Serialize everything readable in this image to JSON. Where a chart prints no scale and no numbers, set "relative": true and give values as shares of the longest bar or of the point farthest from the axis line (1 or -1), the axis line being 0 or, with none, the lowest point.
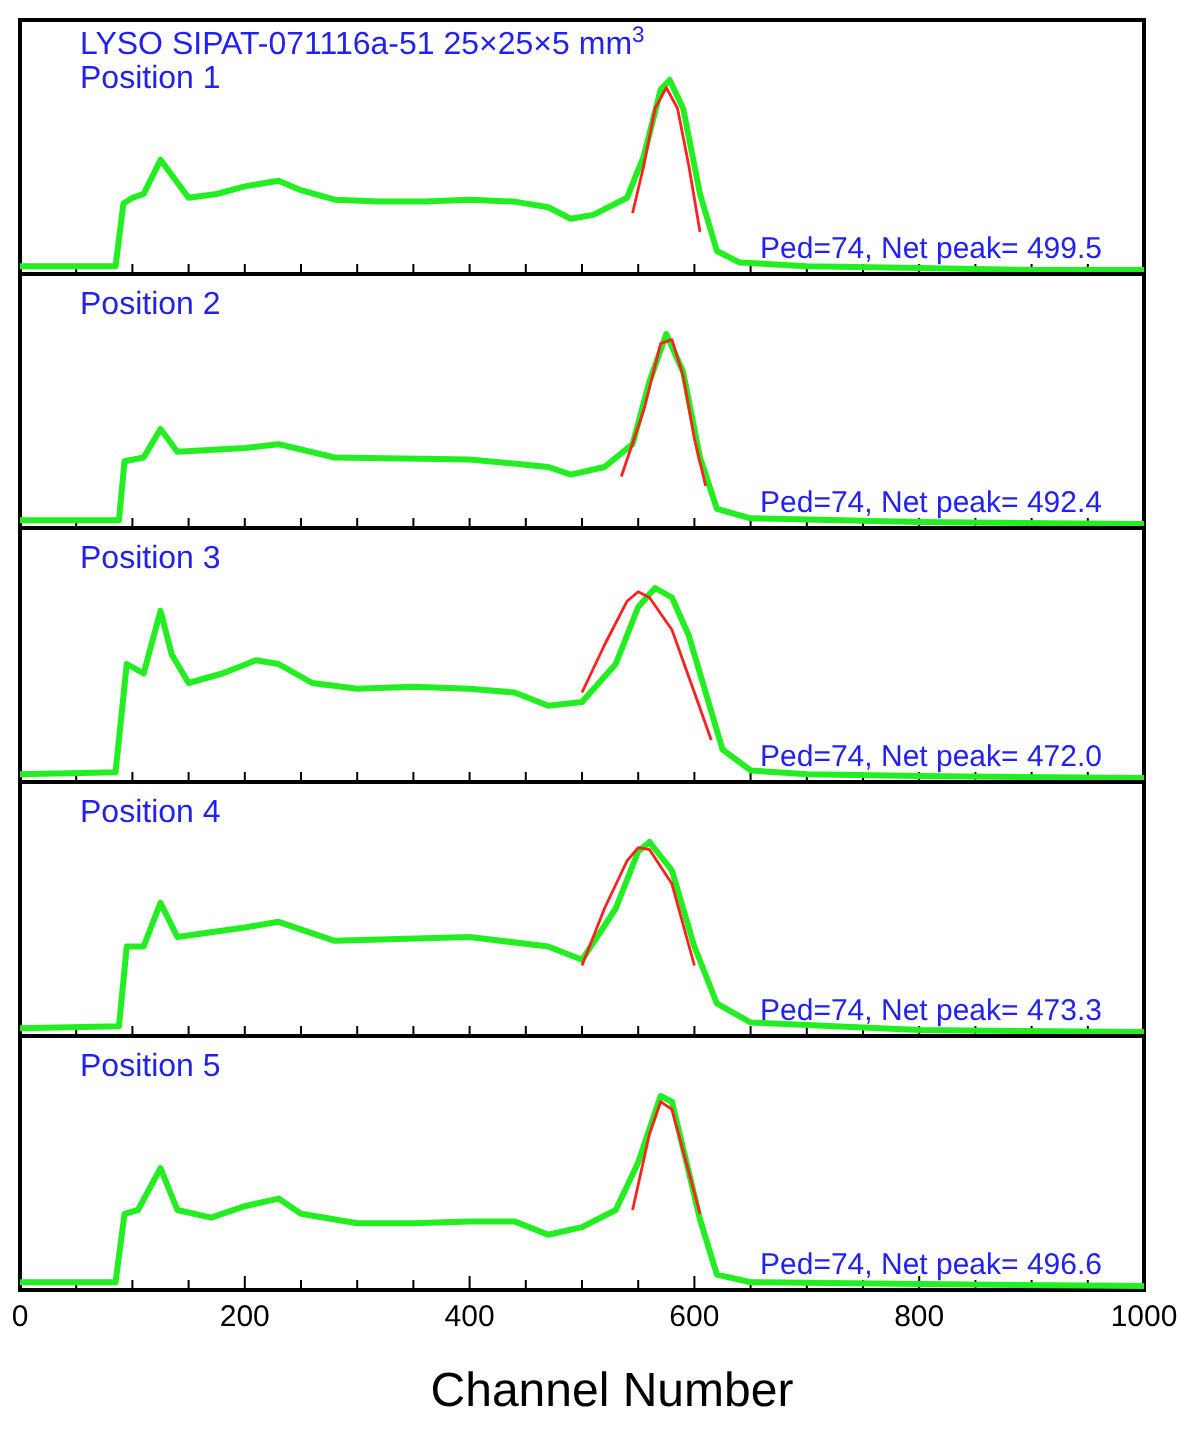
{
  "chart_data": [
    {
      "type": "line",
      "relative": true,
      "title": "LYSO SIPAT-071116a-51  25×25×5 mm$^{3}$",
      "annotations": [
        "Position 1",
        "Ped=74, Net peak= 499.5"
      ],
      "xlim": [
        0,
        1000
      ],
      "xticks": [
        {
          "value": 0,
          "label": null
        },
        {
          "value": 50,
          "label": null
        },
        {
          "value": 100,
          "label": null
        },
        {
          "value": 150,
          "label": null
        },
        {
          "value": 200,
          "label": null
        },
        {
          "value": 250,
          "label": null
        },
        {
          "value": 300,
          "label": null
        },
        {
          "value": 350,
          "label": null
        },
        {
          "value": 400,
          "label": null
        },
        {
          "value": 450,
          "label": null
        },
        {
          "value": 500,
          "label": null
        },
        {
          "value": 550,
          "label": null
        },
        {
          "value": 600,
          "label": null
        },
        {
          "value": 650,
          "label": null
        },
        {
          "value": 700,
          "label": null
        },
        {
          "value": 750,
          "label": null
        },
        {
          "value": 800,
          "label": null
        },
        {
          "value": 850,
          "label": null
        },
        {
          "value": 900,
          "label": null
        },
        {
          "value": 950,
          "label": null
        },
        {
          "value": 1000,
          "label": null
        }
      ],
      "tick_labels": false,
      "series": [
        {
          "color": "#22ee22",
          "x": [
            0,
            85,
            92,
            100,
            110,
            125,
            135,
            150,
            175,
            200,
            230,
            250,
            280,
            320,
            360,
            400,
            440,
            470,
            490,
            510,
            540,
            555,
            570,
            578,
            590,
            605,
            620,
            640,
            700,
            800,
            900,
            1000
          ],
          "values": [
            0.02,
            0.02,
            0.35,
            0.38,
            0.4,
            0.58,
            0.5,
            0.38,
            0.4,
            0.44,
            0.47,
            0.42,
            0.37,
            0.36,
            0.36,
            0.37,
            0.36,
            0.33,
            0.27,
            0.29,
            0.38,
            0.6,
            0.95,
            1.0,
            0.85,
            0.4,
            0.1,
            0.04,
            0.02,
            0.01,
            0,
            0
          ]
        },
        {
          "color": "#ff2020",
          "x": [
            545,
            555,
            565,
            575,
            585,
            595,
            605
          ],
          "values": [
            0.3,
            0.55,
            0.85,
            0.96,
            0.85,
            0.55,
            0.2
          ]
        }
      ]
    },
    {
      "type": "line",
      "relative": true,
      "annotations": [
        "Position 2",
        "Ped=74, Net peak= 492.4"
      ],
      "xlim": [
        0,
        1000
      ],
      "xticks": [
        {
          "value": 0,
          "label": null
        },
        {
          "value": 50,
          "label": null
        },
        {
          "value": 100,
          "label": null
        },
        {
          "value": 150,
          "label": null
        },
        {
          "value": 200,
          "label": null
        },
        {
          "value": 250,
          "label": null
        },
        {
          "value": 300,
          "label": null
        },
        {
          "value": 350,
          "label": null
        },
        {
          "value": 400,
          "label": null
        },
        {
          "value": 450,
          "label": null
        },
        {
          "value": 500,
          "label": null
        },
        {
          "value": 550,
          "label": null
        },
        {
          "value": 600,
          "label": null
        },
        {
          "value": 650,
          "label": null
        },
        {
          "value": 700,
          "label": null
        },
        {
          "value": 750,
          "label": null
        },
        {
          "value": 800,
          "label": null
        },
        {
          "value": 850,
          "label": null
        },
        {
          "value": 900,
          "label": null
        },
        {
          "value": 950,
          "label": null
        },
        {
          "value": 1000,
          "label": null
        }
      ],
      "tick_labels": false,
      "series": [
        {
          "color": "#22ee22",
          "x": [
            0,
            88,
            93,
            110,
            125,
            140,
            200,
            230,
            280,
            400,
            470,
            490,
            520,
            545,
            560,
            575,
            590,
            605,
            620,
            650,
            800,
            1000
          ],
          "values": [
            0.02,
            0.02,
            0.33,
            0.35,
            0.5,
            0.38,
            0.4,
            0.42,
            0.35,
            0.34,
            0.3,
            0.26,
            0.3,
            0.42,
            0.75,
            1.0,
            0.8,
            0.35,
            0.08,
            0.03,
            0.01,
            0
          ]
        },
        {
          "color": "#ff2020",
          "x": [
            535,
            555,
            570,
            580,
            590,
            600,
            610
          ],
          "values": [
            0.25,
            0.6,
            0.95,
            0.97,
            0.78,
            0.45,
            0.2
          ]
        }
      ]
    },
    {
      "type": "line",
      "relative": true,
      "annotations": [
        "Position 3",
        "Ped=74, Net peak= 472.0"
      ],
      "xlim": [
        0,
        1000
      ],
      "xticks": [
        {
          "value": 0,
          "label": null
        },
        {
          "value": 50,
          "label": null
        },
        {
          "value": 100,
          "label": null
        },
        {
          "value": 150,
          "label": null
        },
        {
          "value": 200,
          "label": null
        },
        {
          "value": 250,
          "label": null
        },
        {
          "value": 300,
          "label": null
        },
        {
          "value": 350,
          "label": null
        },
        {
          "value": 400,
          "label": null
        },
        {
          "value": 450,
          "label": null
        },
        {
          "value": 500,
          "label": null
        },
        {
          "value": 550,
          "label": null
        },
        {
          "value": 600,
          "label": null
        },
        {
          "value": 650,
          "label": null
        },
        {
          "value": 700,
          "label": null
        },
        {
          "value": 750,
          "label": null
        },
        {
          "value": 800,
          "label": null
        },
        {
          "value": 850,
          "label": null
        },
        {
          "value": 900,
          "label": null
        },
        {
          "value": 950,
          "label": null
        },
        {
          "value": 1000,
          "label": null
        }
      ],
      "tick_labels": false,
      "series": [
        {
          "color": "#22ee22",
          "x": [
            0,
            85,
            95,
            110,
            125,
            135,
            150,
            180,
            210,
            230,
            260,
            300,
            350,
            400,
            440,
            470,
            500,
            530,
            550,
            565,
            580,
            595,
            610,
            625,
            650,
            700,
            800,
            1000
          ],
          "values": [
            0.02,
            0.03,
            0.6,
            0.55,
            0.88,
            0.65,
            0.5,
            0.55,
            0.62,
            0.6,
            0.5,
            0.47,
            0.48,
            0.47,
            0.45,
            0.38,
            0.4,
            0.6,
            0.9,
            1.0,
            0.95,
            0.75,
            0.45,
            0.15,
            0.04,
            0.02,
            0.01,
            0
          ]
        },
        {
          "color": "#ff2020",
          "x": [
            500,
            520,
            540,
            550,
            560,
            580,
            600,
            615
          ],
          "values": [
            0.45,
            0.7,
            0.93,
            0.98,
            0.95,
            0.78,
            0.45,
            0.2
          ]
        }
      ]
    },
    {
      "type": "line",
      "relative": true,
      "annotations": [
        "Position 4",
        "Ped=74, Net peak= 473.3"
      ],
      "xlim": [
        0,
        1000
      ],
      "xticks": [
        {
          "value": 0,
          "label": null
        },
        {
          "value": 50,
          "label": null
        },
        {
          "value": 100,
          "label": null
        },
        {
          "value": 150,
          "label": null
        },
        {
          "value": 200,
          "label": null
        },
        {
          "value": 250,
          "label": null
        },
        {
          "value": 300,
          "label": null
        },
        {
          "value": 350,
          "label": null
        },
        {
          "value": 400,
          "label": null
        },
        {
          "value": 450,
          "label": null
        },
        {
          "value": 500,
          "label": null
        },
        {
          "value": 550,
          "label": null
        },
        {
          "value": 600,
          "label": null
        },
        {
          "value": 650,
          "label": null
        },
        {
          "value": 700,
          "label": null
        },
        {
          "value": 750,
          "label": null
        },
        {
          "value": 800,
          "label": null
        },
        {
          "value": 850,
          "label": null
        },
        {
          "value": 900,
          "label": null
        },
        {
          "value": 950,
          "label": null
        },
        {
          "value": 1000,
          "label": null
        }
      ],
      "tick_labels": false,
      "series": [
        {
          "color": "#22ee22",
          "x": [
            0,
            88,
            95,
            110,
            125,
            140,
            200,
            230,
            280,
            400,
            470,
            500,
            530,
            550,
            560,
            580,
            600,
            620,
            650,
            800,
            1000
          ],
          "values": [
            0.02,
            0.03,
            0.45,
            0.45,
            0.68,
            0.5,
            0.55,
            0.58,
            0.48,
            0.5,
            0.45,
            0.38,
            0.65,
            0.95,
            1.0,
            0.85,
            0.45,
            0.15,
            0.05,
            0.01,
            0
          ]
        },
        {
          "color": "#ff2020",
          "x": [
            500,
            520,
            540,
            550,
            560,
            580,
            600
          ],
          "values": [
            0.35,
            0.65,
            0.9,
            0.97,
            0.96,
            0.78,
            0.35
          ]
        }
      ]
    },
    {
      "type": "line",
      "relative": true,
      "xlabel": "Channel Number",
      "annotations": [
        "Position 5",
        "Ped=74, Net peak= 496.6"
      ],
      "xlim": [
        0,
        1000
      ],
      "xticks": [
        0,
        {
          "value": 50,
          "label": null
        },
        {
          "value": 100,
          "label": null
        },
        {
          "value": 150,
          "label": null
        },
        200,
        {
          "value": 250,
          "label": null
        },
        {
          "value": 300,
          "label": null
        },
        {
          "value": 350,
          "label": null
        },
        400,
        {
          "value": 450,
          "label": null
        },
        {
          "value": 500,
          "label": null
        },
        {
          "value": 550,
          "label": null
        },
        600,
        {
          "value": 650,
          "label": null
        },
        {
          "value": 700,
          "label": null
        },
        {
          "value": 750,
          "label": null
        },
        800,
        {
          "value": 850,
          "label": null
        },
        {
          "value": 900,
          "label": null
        },
        {
          "value": 950,
          "label": null
        },
        1000
      ],
      "tick_labels": "x",
      "series": [
        {
          "color": "#22ee22",
          "x": [
            0,
            85,
            93,
            105,
            125,
            140,
            170,
            200,
            230,
            250,
            300,
            350,
            400,
            440,
            470,
            500,
            530,
            550,
            570,
            580,
            595,
            605,
            620,
            650,
            800,
            1000
          ],
          "values": [
            0.02,
            0.02,
            0.38,
            0.4,
            0.62,
            0.4,
            0.36,
            0.42,
            0.46,
            0.38,
            0.33,
            0.33,
            0.34,
            0.34,
            0.27,
            0.31,
            0.4,
            0.65,
            1.0,
            0.97,
            0.6,
            0.35,
            0.06,
            0.02,
            0.01,
            0
          ]
        },
        {
          "color": "#ff2020",
          "x": [
            545,
            560,
            570,
            580,
            595,
            605
          ],
          "values": [
            0.4,
            0.8,
            0.97,
            0.93,
            0.6,
            0.38
          ]
        }
      ]
    }
  ]
}
